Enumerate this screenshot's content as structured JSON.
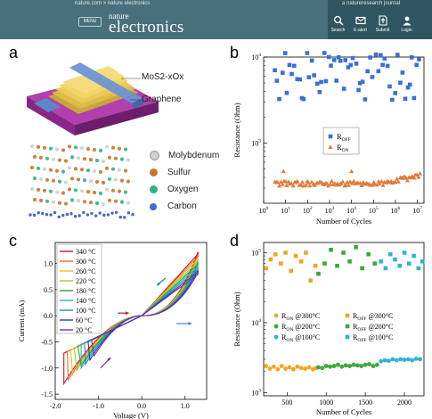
{
  "header": {
    "breadcrumb_home": "nature.com",
    "breadcrumb_sep": ">",
    "breadcrumb_journal": "nature electronics",
    "tagline": "a natureresearch journal",
    "menu_label": "MENU",
    "logo_top": "nature",
    "logo_main": "electronics",
    "nav": [
      {
        "label": "Search",
        "icon": "search-icon"
      },
      {
        "label": "E-alert",
        "icon": "mail-icon"
      },
      {
        "label": "Submit",
        "icon": "submit-icon"
      },
      {
        "label": "Login",
        "icon": "login-icon"
      }
    ],
    "colors": {
      "bar": "#47707c",
      "band": "#2f5560"
    }
  },
  "panels": {
    "a": {
      "label": "a",
      "annotations": {
        "material": "MoS2-xOx",
        "graphene": "Graphene"
      },
      "legend": [
        {
          "name": "Molybdenum",
          "color": "#cfcfcf"
        },
        {
          "name": "Sulfur",
          "color": "#c8762e"
        },
        {
          "name": "Oxygen",
          "color": "#2fb38a"
        },
        {
          "name": "Carbon",
          "color": "#4a67c2"
        }
      ]
    },
    "b": {
      "label": "b"
    },
    "c": {
      "label": "c"
    },
    "d": {
      "label": "d"
    }
  },
  "chart_data": [
    {
      "panel": "b",
      "type": "scatter",
      "xlabel": "Number of Cycles",
      "ylabel": "Resistance (Ohm)",
      "xscale": "log",
      "yscale": "log",
      "xlim": [
        1,
        20000000
      ],
      "ylim": [
        200,
        10000
      ],
      "x_ticks": [
        {
          "v": 1,
          "b": "10",
          "e": "0"
        },
        {
          "v": 10,
          "b": "10",
          "e": "1"
        },
        {
          "v": 100,
          "b": "10",
          "e": "2"
        },
        {
          "v": 1000,
          "b": "10",
          "e": "3"
        },
        {
          "v": 10000,
          "b": "10",
          "e": "4"
        },
        {
          "v": 100000,
          "b": "10",
          "e": "5"
        },
        {
          "v": 1000000,
          "b": "10",
          "e": "6"
        },
        {
          "v": 10000000,
          "b": "10",
          "e": "7"
        }
      ],
      "y_ticks": [
        {
          "v": 1000,
          "b": "10",
          "e": "3"
        },
        {
          "v": 10000,
          "b": "10",
          "e": "4"
        }
      ],
      "y_minor": [
        300,
        400,
        500,
        600,
        700,
        800,
        900,
        2000,
        3000,
        4000,
        5000,
        6000,
        7000,
        8000,
        9000
      ],
      "legend_position": "center",
      "series": [
        {
          "name": "R",
          "sub": "OFF",
          "color": "#3a6fd6",
          "marker": "square",
          "count": 60,
          "xmin": 3,
          "xmax": 15000000,
          "mean": 6000,
          "spread": 0.28
        },
        {
          "name": "R",
          "sub": "ON",
          "color": "#e07b39",
          "marker": "triangle",
          "count": 95,
          "xmin": 3,
          "xmax": 15000000,
          "mean": 340,
          "spread": 0.03,
          "outliers": [
            {
              "x": 8,
              "y": 470
            },
            {
              "x": 10000,
              "y": 470
            }
          ]
        }
      ]
    },
    {
      "panel": "c",
      "type": "line",
      "xlabel": "Voltage (V)",
      "ylabel": "Current (mA)",
      "xlim": [
        -2.0,
        1.5
      ],
      "ylim": [
        -1.6,
        1.4
      ],
      "x_ticks": [
        {
          "v": -2.0,
          "t": "-2.0"
        },
        {
          "v": -1.0,
          "t": "-1.0"
        },
        {
          "v": 0.0,
          "t": "0.0"
        },
        {
          "v": 1.0,
          "t": "1.0"
        }
      ],
      "y_ticks": [
        {
          "v": -1.5,
          "t": "-1.5"
        },
        {
          "v": -1.0,
          "t": "-1.0"
        },
        {
          "v": -0.5,
          "t": "-0.5"
        },
        {
          "v": 0.0,
          "t": "0.0"
        },
        {
          "v": 0.5,
          "t": "0.5"
        },
        {
          "v": 1.0,
          "t": "1.0"
        }
      ],
      "legend_position": "top-left",
      "series": [
        {
          "name": "340 °C",
          "color": "#c0182c",
          "neg": -1.3,
          "pos": 1.22,
          "vmin": -1.8
        },
        {
          "name": "300 °C",
          "color": "#ef6a2a",
          "neg": -1.25,
          "pos": 1.17,
          "vmin": -1.72
        },
        {
          "name": "260 °C",
          "color": "#e8c12c",
          "neg": -1.18,
          "pos": 1.12,
          "vmin": -1.64
        },
        {
          "name": "220 °C",
          "color": "#9acd32",
          "neg": -1.12,
          "pos": 1.07,
          "vmin": -1.56
        },
        {
          "name": "180 °C",
          "color": "#2ca02c",
          "neg": -1.06,
          "pos": 1.02,
          "vmin": -1.48
        },
        {
          "name": "140 °C",
          "color": "#26b5a8",
          "neg": -1.0,
          "pos": 0.97,
          "vmin": -1.4
        },
        {
          "name": "100 °C",
          "color": "#2c7fd1",
          "neg": -0.95,
          "pos": 0.92,
          "vmin": -1.32
        },
        {
          "name": "60 °C",
          "color": "#2b3ca8",
          "neg": -0.9,
          "pos": 0.87,
          "vmin": -1.24
        },
        {
          "name": "20 °C",
          "color": "#7a2f9c",
          "neg": -0.85,
          "pos": 0.82,
          "vmin": -1.16
        }
      ]
    },
    {
      "panel": "d",
      "type": "scatter",
      "xlabel": "Number of Cycles",
      "ylabel": "Resistance (Ohm)",
      "yscale": "log",
      "xlim": [
        200,
        2250
      ],
      "ylim": [
        900,
        140000
      ],
      "x_ticks": [
        {
          "v": 500,
          "t": "500"
        },
        {
          "v": 1000,
          "t": "1000"
        },
        {
          "v": 1500,
          "t": "1500"
        },
        {
          "v": 2000,
          "t": "2000"
        }
      ],
      "y_ticks": [
        {
          "v": 1000,
          "b": "10",
          "e": "3"
        },
        {
          "v": 10000,
          "b": "10",
          "e": "4"
        },
        {
          "v": 100000,
          "b": "10",
          "e": "5"
        }
      ],
      "y_minor": [
        2000,
        3000,
        4000,
        5000,
        6000,
        7000,
        8000,
        9000,
        20000,
        30000,
        40000,
        50000,
        60000,
        70000,
        80000,
        90000
      ],
      "legend_position": "center",
      "series": [
        {
          "name": "R",
          "sub": "ON",
          "cond": " @300°C",
          "color": "#f2a623",
          "marker": "circle",
          "x": [
            230,
            280,
            330,
            380,
            430,
            480,
            530,
            580,
            630,
            680,
            730,
            780,
            830,
            870
          ],
          "y": [
            2400,
            2200,
            2350,
            2150,
            2400,
            2200,
            2300,
            2150,
            2350,
            2250,
            2200,
            2300,
            2150,
            2250
          ]
        },
        {
          "name": "R",
          "sub": "OFF",
          "cond": " @300°C",
          "color": "#f2a623",
          "marker": "square",
          "x": [
            230,
            290,
            350,
            420,
            480,
            550,
            610,
            680,
            740,
            800,
            860
          ],
          "y": [
            60000,
            80000,
            95000,
            70000,
            100000,
            55000,
            90000,
            75000,
            100000,
            40000,
            65000
          ]
        },
        {
          "name": "R",
          "sub": "ON",
          "cond": " @200°C",
          "color": "#3aa83a",
          "marker": "circle",
          "x": [
            900,
            950,
            1000,
            1050,
            1100,
            1150,
            1200,
            1250,
            1300,
            1350,
            1400,
            1450,
            1500,
            1550,
            1600,
            1650
          ],
          "y": [
            2300,
            2250,
            2400,
            2350,
            2400,
            2500,
            2350,
            2450,
            2400,
            2500,
            2450,
            2400,
            2500,
            2550,
            2400,
            2500
          ]
        },
        {
          "name": "R",
          "sub": "OFF",
          "cond": " @200°C",
          "color": "#3aa83a",
          "marker": "square",
          "x": [
            900,
            980,
            1060,
            1140,
            1220,
            1300,
            1380,
            1460,
            1540,
            1620
          ],
          "y": [
            50000,
            70000,
            110000,
            65000,
            100000,
            75000,
            120000,
            60000,
            95000,
            70000
          ]
        },
        {
          "name": "R",
          "sub": "ON",
          "cond": " @100°C",
          "color": "#2fb3d4",
          "marker": "circle",
          "x": [
            1700,
            1750,
            1800,
            1850,
            1900,
            1950,
            2000,
            2050,
            2100,
            2150,
            2200
          ],
          "y": [
            2800,
            2900,
            2850,
            3000,
            2900,
            3000,
            2950,
            3000,
            2900,
            3050,
            3000
          ]
        },
        {
          "name": "R",
          "sub": "OFF",
          "cond": " @100°C",
          "color": "#2fb3d4",
          "marker": "square",
          "x": [
            1700,
            1760,
            1820,
            1880,
            1940,
            2000,
            2060,
            2120,
            2180,
            2230
          ],
          "y": [
            75000,
            60000,
            95000,
            80000,
            65000,
            100000,
            70000,
            90000,
            60000,
            75000
          ]
        }
      ]
    }
  ]
}
